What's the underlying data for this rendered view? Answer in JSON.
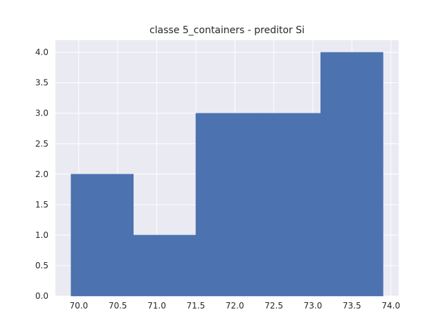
{
  "chart_data": {
    "type": "bar",
    "title": "classe 5_containers - preditor Si",
    "xlabel": "",
    "ylabel": "",
    "bins": [
      {
        "x0": 69.9,
        "x1": 70.7,
        "value": 2
      },
      {
        "x0": 70.7,
        "x1": 71.5,
        "value": 1
      },
      {
        "x0": 71.5,
        "x1": 72.3,
        "value": 3
      },
      {
        "x0": 72.3,
        "x1": 73.1,
        "value": 3
      },
      {
        "x0": 73.1,
        "x1": 73.9,
        "value": 4
      }
    ],
    "xlim": [
      69.7,
      74.1
    ],
    "ylim": [
      0,
      4.2
    ],
    "xticks": [
      "70.0",
      "70.5",
      "71.0",
      "71.5",
      "72.0",
      "72.5",
      "73.0",
      "73.5",
      "74.0"
    ],
    "yticks": [
      "0.0",
      "0.5",
      "1.0",
      "1.5",
      "2.0",
      "2.5",
      "3.0",
      "3.5",
      "4.0"
    ],
    "grid": true,
    "colors": {
      "bar": "#4c72b0",
      "background": "#eaeaf2",
      "grid": "#ffffff",
      "text": "#262626"
    }
  }
}
